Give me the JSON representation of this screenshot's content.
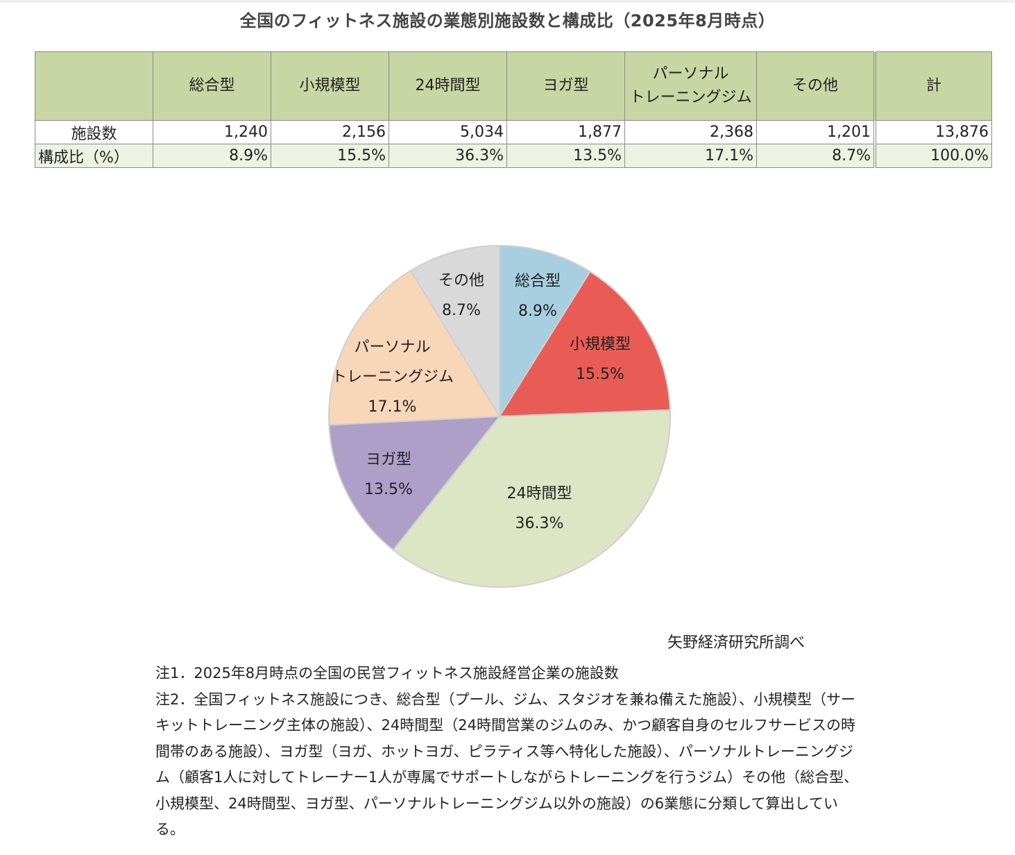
{
  "title": "全国のフィットネス施設の業態別施設数と構成比（2025年8月時点）",
  "table": {
    "headers": [
      "",
      "総合型",
      "小規模型",
      "24時間型",
      "ヨガ型",
      "パーソナル\nトレーニングジム",
      "その他",
      "計"
    ],
    "header_personal_line1": "パーソナル",
    "header_personal_line2": "トレーニングジム",
    "rows": [
      {
        "label": "施設数",
        "values": [
          "1,240",
          "2,156",
          "5,034",
          "1,877",
          "2,368",
          "1,201",
          "13,876"
        ]
      },
      {
        "label": "構成比（%）",
        "values": [
          "8.9%",
          "15.5%",
          "36.3%",
          "13.5%",
          "17.1%",
          "8.7%",
          "100.0%"
        ]
      }
    ]
  },
  "chart_data": {
    "type": "pie",
    "title": "全国のフィットネス施設の業態別施設数と構成比（2025年8月時点）",
    "categories": [
      "総合型",
      "小規模型",
      "24時間型",
      "ヨガ型",
      "パーソナルトレーニングジム",
      "その他"
    ],
    "values": [
      8.9,
      15.5,
      36.3,
      13.5,
      17.1,
      8.7
    ],
    "counts": [
      1240,
      2156,
      5034,
      1877,
      2368,
      1201
    ],
    "total": 13876,
    "unit": "%",
    "colors": [
      "#a7cfe0",
      "#e95c55",
      "#dce5c4",
      "#ae9fc8",
      "#f8d6b8",
      "#d9d9d9"
    ],
    "labels": [
      {
        "name": "総合型",
        "pct": "8.9%"
      },
      {
        "name": "小規模型",
        "pct": "15.5%"
      },
      {
        "name": "24時間型",
        "pct": "36.3%"
      },
      {
        "name": "ヨガ型",
        "pct": "13.5%"
      },
      {
        "name_line1": "パーソナル",
        "name_line2": "トレーニングジム",
        "pct": "17.1%"
      },
      {
        "name": "その他",
        "pct": "8.7%"
      }
    ],
    "start_angle": "12 o'clock, clockwise",
    "legend": "none (data labels inside slices)"
  },
  "source": "矢野経済研究所調べ",
  "notes": [
    "注1．2025年8月時点の全国の民営フィットネス施設経営企業の施設数",
    "注2．全国フィットネス施設につき、総合型（プール、ジム、スタジオを兼ね備えた施設）、小規模型（サーキットトレーニング主体の施設）、24時間型（24時間営業のジムのみ、かつ顧客自身のセルフサービスの時間帯のある施設）、ヨガ型（ヨガ、ホットヨガ、ピラティス等へ特化した施設）、パーソナルトレーニングジム（顧客1人に対してトレーナー1人が専属でサポートしながらトレーニングを行うジム）その他（総合型、小規模型、24時間型、ヨガ型、パーソナルトレーニングジム以外の施設）の6業態に分類して算出している。"
  ]
}
